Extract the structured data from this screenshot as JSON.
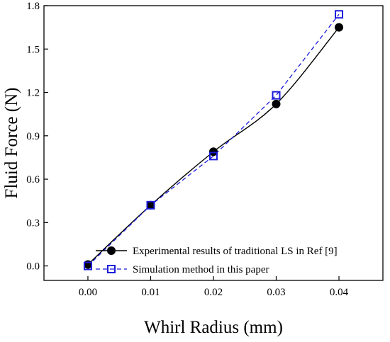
{
  "chart_data": {
    "type": "line",
    "xlabel": "Whirl Radius (mm)",
    "ylabel": "Fluid Force (N)",
    "xlim": [
      -0.007,
      0.047
    ],
    "ylim": [
      -0.1,
      1.8
    ],
    "xticks": [
      "0.00",
      "0.01",
      "0.02",
      "0.03",
      "0.04"
    ],
    "xtick_values": [
      0,
      0.01,
      0.02,
      0.03,
      0.04
    ],
    "yticks": [
      "0.0",
      "0.3",
      "0.6",
      "0.9",
      "1.2",
      "1.5",
      "1.8"
    ],
    "ytick_values": [
      0,
      0.3,
      0.6,
      0.9,
      1.2,
      1.5,
      1.8
    ],
    "grid": false,
    "legend_position": "bottom-right",
    "series": [
      {
        "name": "Experimental results of traditional LS in Ref [9]",
        "marker": "filled-circle",
        "line": "solid-smooth",
        "color": "#000000",
        "x": [
          0,
          0.01,
          0.02,
          0.03,
          0.04
        ],
        "y": [
          0.01,
          0.42,
          0.79,
          1.12,
          1.65
        ]
      },
      {
        "name": "Simulation method in this paper",
        "marker": "open-square",
        "line": "dashed",
        "color": "#1a1adc",
        "x": [
          0,
          0.01,
          0.02,
          0.03,
          0.04
        ],
        "y": [
          0.0,
          0.42,
          0.76,
          1.18,
          1.74
        ]
      }
    ]
  }
}
